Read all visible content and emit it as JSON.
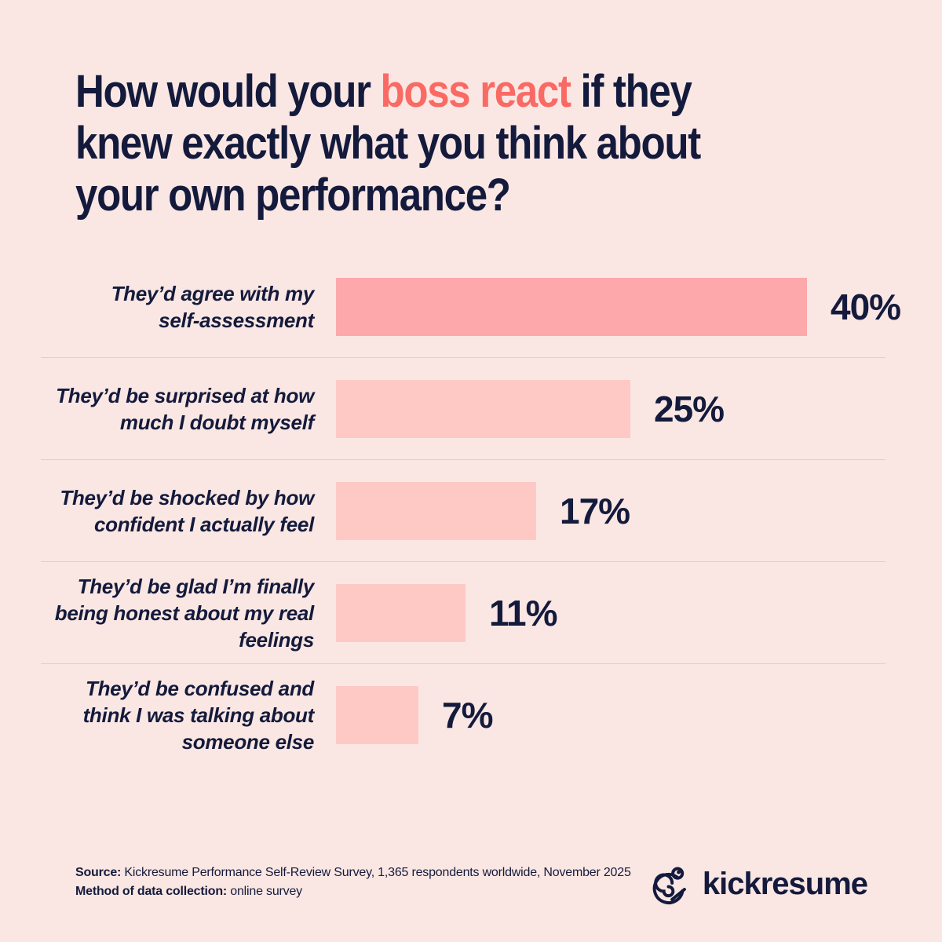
{
  "title": {
    "line1_pre": "How would your ",
    "line1_highlight": "boss react",
    "line1_post": " if they",
    "line2": "knew exactly what you think about",
    "line3": "your own performance?",
    "full": "How would your boss react if they knew exactly what you think about your own performance?"
  },
  "chart_data": {
    "type": "bar",
    "orientation": "horizontal",
    "title": "How would your boss react if they knew exactly what you think about your own performance?",
    "categories": [
      "They’d agree with my self-assessment",
      "They’d be surprised at how much I doubt myself",
      "They’d be shocked by how confident I actually feel",
      "They’d be glad I’m finally being honest about my real feelings",
      "They’d be confused and think I was talking about someone else"
    ],
    "category_lines": [
      [
        "They’d agree with my",
        "self-assessment"
      ],
      [
        "They’d be surprised at how",
        "much I doubt myself"
      ],
      [
        "They’d be shocked by how",
        "confident I actually feel"
      ],
      [
        "They’d be glad I’m finally",
        "being honest about my real",
        "feelings"
      ],
      [
        "They’d be confused and",
        "think I was talking about",
        "someone else"
      ]
    ],
    "values": [
      40,
      25,
      17,
      11,
      7
    ],
    "value_labels": [
      "40%",
      "25%",
      "17%",
      "11%",
      "7%"
    ],
    "xlim": [
      0,
      40
    ],
    "grid": false,
    "legend": false,
    "bar_colors": [
      "#FDA8AB",
      "#FEC9C5",
      "#FEC9C5",
      "#FEC9C5",
      "#FEC9C5"
    ]
  },
  "footer": {
    "source_label": "Source:",
    "source_text": " Kickresume Performance Self-Review Survey, 1,365 respondents worldwide, November 2025",
    "method_label": "Method of data collection:",
    "method_text": " online survey",
    "brand": "kickresume"
  },
  "colors": {
    "background": "#FAE7E3",
    "text_navy": "#141A3C",
    "accent_coral": "#FA6A64",
    "bar_primary": "#FDA8AB",
    "bar_secondary": "#FEC9C5",
    "divider": "#E3CFCA"
  }
}
